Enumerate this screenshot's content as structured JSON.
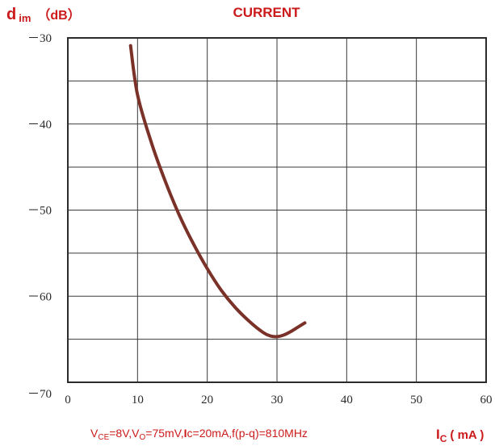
{
  "chart_data": {
    "type": "line",
    "title": "CURRENT",
    "ylabel_main": "d",
    "ylabel_sub": "im",
    "ylabel_unit": "（dB）",
    "xlabel_main": "I",
    "xlabel_sub": "C",
    "xlabel_unit": "( mA )",
    "conditions": [
      {
        "t": "V"
      },
      {
        "t": "CE",
        "sub": true
      },
      {
        "t": "=8V,V"
      },
      {
        "t": "O",
        "sub": true
      },
      {
        "t": "=75mV,"
      },
      {
        "t": "I",
        "bold": true
      },
      {
        "t": "c=20mA,f(p-q)=810MHz"
      }
    ],
    "xlim": [
      0,
      60
    ],
    "ylim": [
      -70,
      -30
    ],
    "x_ticks": [
      0,
      10,
      20,
      30,
      40,
      50,
      60
    ],
    "y_ticks": [
      -30,
      -40,
      -50,
      -60,
      -70
    ],
    "x_tick_labels": [
      "0",
      "10",
      "20",
      "30",
      "40",
      "50",
      "60"
    ],
    "y_tick_labels": [
      "－30",
      "－40",
      "－50",
      "－60",
      "－70"
    ],
    "grid": true,
    "series": [
      {
        "color": "#7a3128",
        "x": [
          9,
          10,
          12,
          14,
          16,
          18,
          20,
          22,
          24,
          26,
          28,
          29,
          30,
          31,
          32,
          33,
          34
        ],
        "y": [
          -30.9,
          -36.6,
          -42.2,
          -46.7,
          -50.6,
          -53.9,
          -56.8,
          -59.3,
          -61.3,
          -62.9,
          -64.2,
          -64.6,
          -64.7,
          -64.5,
          -64.1,
          -63.6,
          -63.1
        ]
      }
    ]
  }
}
